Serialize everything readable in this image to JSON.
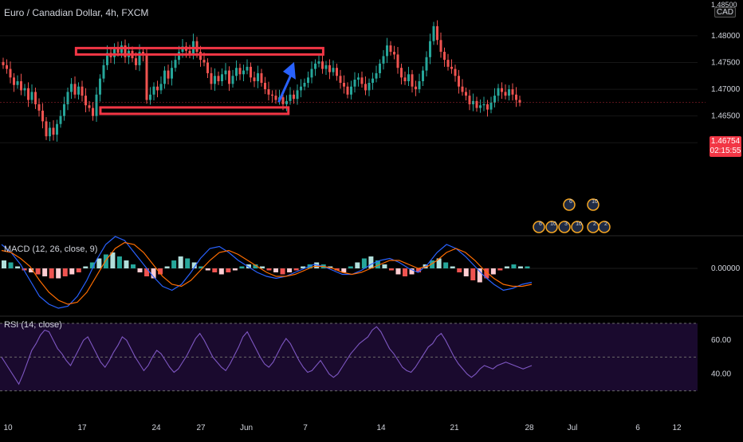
{
  "chart_meta": {
    "title": "Euro / Canadian Dollar, 4h, FXCM",
    "currency": "CAD",
    "last_price": "1.46754",
    "countdown": "02:15:55",
    "macd_label": "MACD (12, 26, close, 9)",
    "rsi_label": "RSI (14, close)"
  },
  "colors": {
    "background": "#000000",
    "up": "#26a69a",
    "down": "#ef5350",
    "box": "#f23645",
    "arrow": "#2962ff",
    "macd_line": "#2962ff",
    "signal_line": "#ff6d00",
    "rsi_line": "#7e57c2",
    "rsi_band": "#1a0a2e",
    "text": "#d1d4dc"
  },
  "chart_data": [
    {
      "type": "candlestick",
      "ylim": [
        1.4435,
        1.4855
      ],
      "y_ticks": [
        "1.48000",
        "1.47500",
        "1.47000",
        "1.46500",
        "1.46000"
      ],
      "y_top_partial": "1.48500",
      "x_ticks": [
        "10",
        "17",
        "24",
        "27",
        "Jun",
        "7",
        "14",
        "21",
        "28",
        "Jul",
        "6",
        "12"
      ],
      "candles": [
        1.4745,
        1.4738,
        1.4722,
        1.4708,
        1.4715,
        1.4698,
        1.4702,
        1.468,
        1.4695,
        1.4672,
        1.466,
        1.464,
        1.4612,
        1.4628,
        1.4615,
        1.4635,
        1.465,
        1.4672,
        1.4695,
        1.471,
        1.469,
        1.4705,
        1.4688,
        1.467,
        1.4665,
        1.465,
        1.469,
        1.472,
        1.4745,
        1.4768,
        1.476,
        1.4775,
        1.4768,
        1.4782,
        1.476,
        1.4772,
        1.4758,
        1.4745,
        1.477,
        1.4765,
        1.468,
        1.469,
        1.4705,
        1.4698,
        1.471,
        1.4735,
        1.472,
        1.474,
        1.4755,
        1.477,
        1.478,
        1.4772,
        1.4765,
        1.479,
        1.477,
        1.4755,
        1.475,
        1.473,
        1.471,
        1.4725,
        1.4715,
        1.4728,
        1.4735,
        1.471,
        1.4725,
        1.474,
        1.4728,
        1.4735,
        1.4742,
        1.4722,
        1.4715,
        1.473,
        1.4712,
        1.47,
        1.469,
        1.4688,
        1.468,
        1.4685,
        1.4672,
        1.4678,
        1.469,
        1.4682,
        1.4698,
        1.4705,
        1.4712,
        1.4722,
        1.4738,
        1.4748,
        1.4752,
        1.4738,
        1.4745,
        1.4732,
        1.474,
        1.4725,
        1.4712,
        1.4705,
        1.469,
        1.4705,
        1.4718,
        1.4722,
        1.471,
        1.4698,
        1.4712,
        1.472,
        1.473,
        1.4748,
        1.4762,
        1.4782,
        1.477,
        1.4765,
        1.474,
        1.4722,
        1.4715,
        1.4728,
        1.4705,
        1.47,
        1.4715,
        1.4735,
        1.476,
        1.479,
        1.4818,
        1.4792,
        1.477,
        1.4755,
        1.4742,
        1.4738,
        1.4725,
        1.4705,
        1.4695,
        1.4688,
        1.4672,
        1.4678,
        1.4665,
        1.467,
        1.4672,
        1.4662,
        1.4675,
        1.4688,
        1.4702,
        1.4695,
        1.4688,
        1.47,
        1.469,
        1.468,
        1.4675
      ]
    },
    {
      "type": "bar+line",
      "name": "MACD",
      "y_ticks": [
        "0.00000"
      ],
      "histogram": [
        0.0004,
        0.0003,
        0.0001,
        -0.0001,
        -0.0002,
        -0.0003,
        -0.0004,
        -0.0005,
        -0.0005,
        -0.0004,
        -0.0003,
        -0.0002,
        0.0001,
        0.0003,
        0.0005,
        0.0007,
        0.0008,
        0.0006,
        0.0004,
        0.0002,
        -0.0002,
        -0.0004,
        -0.0005,
        -0.0003,
        0.0001,
        0.0004,
        0.0006,
        0.0005,
        0.0003,
        0.0001,
        -0.0001,
        -0.0002,
        -0.0003,
        -0.0002,
        -0.0001,
        0.0001,
        0.0002,
        0.0002,
        0.0001,
        -0.0001,
        -0.0002,
        -0.0003,
        -0.0002,
        -0.0001,
        0.0001,
        0.0002,
        0.0003,
        0.0002,
        0.0001,
        -0.0001,
        -0.0002,
        0.0001,
        0.0003,
        0.0005,
        0.0006,
        0.0004,
        0.0002,
        -0.0001,
        -0.0003,
        -0.0004,
        -0.0003,
        -0.0002,
        0.0002,
        0.0004,
        0.0005,
        0.0003,
        0.0001,
        -0.0002,
        -0.0004,
        -0.0006,
        -0.0007,
        -0.0005,
        -0.0003,
        -0.0001,
        0.0001,
        0.0002,
        0.0001,
        0.0001
      ],
      "macd_line": [
        0.0012,
        0.0008,
        0.0002,
        -0.0006,
        -0.0014,
        -0.0018,
        -0.002,
        -0.0019,
        -0.0014,
        -0.0006,
        0.0004,
        0.0012,
        0.0016,
        0.0014,
        0.0008,
        0.0002,
        -0.0004,
        -0.0009,
        -0.0011,
        -0.0008,
        -0.0002,
        0.0005,
        0.001,
        0.0011,
        0.0008,
        0.0004,
        0.0001,
        -0.0002,
        -0.0004,
        -0.0005,
        -0.0004,
        -0.0002,
        0.0,
        0.0002,
        0.0001,
        -0.0001,
        -0.0003,
        -0.0003,
        -0.0001,
        0.0002,
        0.0004,
        0.0005,
        0.0003,
        0.0,
        -0.0002,
        0.0002,
        0.0008,
        0.0012,
        0.001,
        0.0006,
        0.0001,
        -0.0004,
        -0.0008,
        -0.0011,
        -0.001,
        -0.0008,
        -0.0007
      ],
      "signal_line": [
        0.0009,
        0.0008,
        0.0005,
        0.0001,
        -0.0006,
        -0.0012,
        -0.0016,
        -0.0018,
        -0.0017,
        -0.0012,
        -0.0004,
        0.0004,
        0.001,
        0.0013,
        0.0012,
        0.0008,
        0.0002,
        -0.0004,
        -0.0008,
        -0.0009,
        -0.0006,
        -0.0001,
        0.0004,
        0.0008,
        0.0009,
        0.0007,
        0.0004,
        0.0001,
        -0.0002,
        -0.0004,
        -0.0004,
        -0.0003,
        -0.0001,
        0.0001,
        0.0001,
        0.0,
        -0.0002,
        -0.0003,
        -0.0002,
        0.0,
        0.0002,
        0.0004,
        0.0004,
        0.0002,
        0.0,
        0.0001,
        0.0004,
        0.0008,
        0.001,
        0.0008,
        0.0004,
        -0.0001,
        -0.0005,
        -0.0008,
        -0.0009,
        -0.0009,
        -0.0008
      ]
    },
    {
      "type": "line",
      "name": "RSI",
      "ylim": [
        20,
        70
      ],
      "y_ticks": [
        "60.00",
        "40.00"
      ],
      "values": [
        50,
        46,
        42,
        38,
        34,
        40,
        47,
        54,
        58,
        63,
        66,
        65,
        60,
        55,
        52,
        48,
        45,
        50,
        55,
        60,
        62,
        57,
        52,
        47,
        44,
        48,
        53,
        57,
        62,
        60,
        55,
        50,
        46,
        42,
        45,
        50,
        54,
        52,
        48,
        44,
        41,
        43,
        47,
        51,
        56,
        61,
        64,
        60,
        55,
        50,
        47,
        44,
        42,
        46,
        51,
        56,
        62,
        65,
        60,
        55,
        50,
        46,
        44,
        47,
        52,
        57,
        61,
        58,
        53,
        48,
        44,
        41,
        42,
        45,
        48,
        44,
        40,
        38,
        40,
        44,
        48,
        52,
        55,
        58,
        60,
        62,
        66,
        68,
        65,
        60,
        55,
        52,
        48,
        44,
        42,
        41,
        44,
        48,
        52,
        56,
        58,
        62,
        64,
        60,
        55,
        50,
        46,
        43,
        40,
        38,
        40,
        43,
        45,
        44,
        43,
        45,
        46,
        47,
        46,
        45,
        44,
        43,
        44,
        45
      ]
    },
    {
      "type": "annotations",
      "boxes": [
        {
          "name": "resistance-zone",
          "x_range": [
            20.3,
            89.2
          ],
          "y_range": [
            1.4765,
            1.4777
          ]
        },
        {
          "name": "support-zone",
          "x_range": [
            27.1,
            79.5
          ],
          "y_range": [
            1.4654,
            1.4666
          ]
        }
      ],
      "arrow": {
        "from": [
          76.8,
          1.4676
        ],
        "to": [
          81.1,
          1.4751
        ]
      },
      "event_labels": [
        "6",
        "10",
        "6",
        "10",
        "3",
        "10",
        "2",
        "2"
      ]
    }
  ]
}
